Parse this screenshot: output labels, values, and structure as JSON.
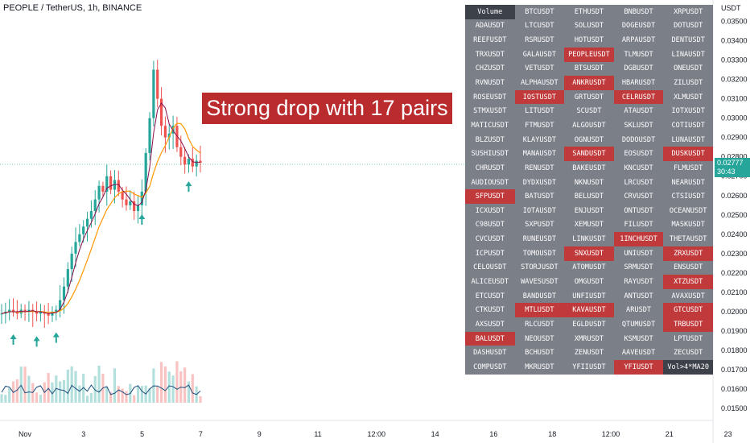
{
  "header": {
    "title": "PEOPLE / TetherUS, 1h, BINANCE"
  },
  "banner": {
    "text": "Strong drop with 17 pairs"
  },
  "price_axis": {
    "currency": "USDT",
    "current_price": "0.02777",
    "countdown": "30:43"
  },
  "colors": {
    "up": "#26a69a",
    "down": "#ef5350",
    "ma_fast": "#880e4f",
    "ma_slow": "#ff9800",
    "volume_ma": "#1e4e7c",
    "highlight": "#c0393b",
    "table_bg": "#7b7f88",
    "header_bg": "#3d414a"
  },
  "chart_data": {
    "type": "line",
    "ylim": [
      0.0148,
      0.0361
    ],
    "y_ticks": [
      "0.01500",
      "0.01600",
      "0.01700",
      "0.01800",
      "0.01900",
      "0.02000",
      "0.02100",
      "0.02200",
      "0.02300",
      "0.02400",
      "0.02500",
      "0.02600",
      "0.02700",
      "0.02800",
      "0.02900",
      "0.03000",
      "0.03100",
      "0.03200",
      "0.03300",
      "0.03400",
      "0.03500"
    ],
    "x_ticks": [
      "Nov",
      "3",
      "5",
      "7",
      "9",
      "11",
      "12:00",
      "14",
      "16",
      "18",
      "12:00",
      "21",
      "23"
    ],
    "series": [
      {
        "values": [
          0.0199,
          0.02,
          0.0201,
          0.02,
          0.0199,
          0.0201,
          0.02,
          0.0201,
          0.02,
          0.0199,
          0.02,
          0.0199,
          0.0198,
          0.02,
          0.0201,
          0.0206,
          0.0213,
          0.0222,
          0.023,
          0.0236,
          0.024,
          0.0244,
          0.0248,
          0.0252,
          0.0258,
          0.0265,
          0.0262,
          0.027,
          0.0263,
          0.0268,
          0.0262,
          0.0258,
          0.0255,
          0.0257,
          0.0252,
          0.0255,
          0.0262,
          0.0282,
          0.03,
          0.0325,
          0.031,
          0.0296,
          0.029,
          0.0292,
          0.0296,
          0.0285,
          0.028,
          0.0276,
          0.0279,
          0.0275,
          0.0278,
          0.0277
        ]
      }
    ],
    "signal_arrows": 5
  },
  "scanner": {
    "rows": [
      [
        "Volume",
        "BTCUSDT",
        "ETHUSDT",
        "BNBUSDT",
        "XRPUSDT"
      ],
      [
        "ADAUSDT",
        "LTCUSDT",
        "SOLUSDT",
        "DOGEUSDT",
        "DOTUSDT"
      ],
      [
        "REEFUSDT",
        "RSRUSDT",
        "HOTUSDT",
        "ARPAUSDT",
        "DENTUSDT"
      ],
      [
        "TRXUSDT",
        "GALAUSDT",
        "PEOPLEUSDT",
        "TLMUSDT",
        "LINAUSDT"
      ],
      [
        "CHZUSDT",
        "VETUSDT",
        "BTSUSDT",
        "DGBUSDT",
        "ONEUSDT"
      ],
      [
        "RVNUSDT",
        "ALPHAUSDT",
        "ANKRUSDT",
        "HBARUSDT",
        "ZILUSDT"
      ],
      [
        "ROSEUSDT",
        "IOSTUSDT",
        "GRTUSDT",
        "CELRUSDT",
        "XLMUSDT"
      ],
      [
        "STMXUSDT",
        "LITUSDT",
        "SCUSDT",
        "ATAUSDT",
        "IOTXUSDT"
      ],
      [
        "MATICUSDT",
        "FTMUSDT",
        "ALGOUSDT",
        "SKLUSDT",
        "COTIUSDT"
      ],
      [
        "BLZUSDT",
        "KLAYUSDT",
        "OGNUSDT",
        "DODOUSDT",
        "LUNAUSDT"
      ],
      [
        "SUSHIUSDT",
        "MANAUSDT",
        "SANDUSDT",
        "EOSUSDT",
        "DUSKUSDT"
      ],
      [
        "CHRUSDT",
        "RENUSDT",
        "BAKEUSDT",
        "KNCUSDT",
        "FLMUSDT"
      ],
      [
        "AUDIOUSDT",
        "DYDXUSDT",
        "NKNUSDT",
        "LRCUSDT",
        "NEARUSDT"
      ],
      [
        "SFPUSDT",
        "BATUSDT",
        "BELUSDT",
        "CRVUSDT",
        "CTSIUSDT"
      ],
      [
        "ICXUSDT",
        "IOTAUSDT",
        "ENJUSDT",
        "ONTUSDT",
        "OCEANUSDT"
      ],
      [
        "C98USDT",
        "SXPUSDT",
        "XEMUSDT",
        "FILUSDT",
        "MASKUSDT"
      ],
      [
        "CVCUSDT",
        "RUNEUSDT",
        "LINKUSDT",
        "1INCHUSDT",
        "THETAUSDT"
      ],
      [
        "ICPUSDT",
        "TOMOUSDT",
        "SNXUSDT",
        "UNIUSDT",
        "ZRXUSDT"
      ],
      [
        "CELOUSDT",
        "STORJUSDT",
        "ATOMUSDT",
        "SRMUSDT",
        "ENSUSDT"
      ],
      [
        "ALICEUSDT",
        "WAVESUSDT",
        "OMGUSDT",
        "RAYUSDT",
        "XTZUSDT"
      ],
      [
        "ETCUSDT",
        "BANDUSDT",
        "UNFIUSDT",
        "ANTUSDT",
        "AVAXUSDT"
      ],
      [
        "CTKUSDT",
        "MTLUSDT",
        "KAVAUSDT",
        "ARUSDT",
        "GTCUSDT"
      ],
      [
        "AXSUSDT",
        "RLCUSDT",
        "EGLDUSDT",
        "QTUMUSDT",
        "TRBUSDT"
      ],
      [
        "BALUSDT",
        "NEOUSDT",
        "XMRUSDT",
        "KSMUSDT",
        "LPTUSDT"
      ],
      [
        "DASHUSDT",
        "BCHUSDT",
        "ZENUSDT",
        "AAVEUSDT",
        "ZECUSDT"
      ],
      [
        "COMPUSDT",
        "MKRUSDT",
        "YFIIUSDT",
        "YFIUSDT",
        "Vol>4*MA20"
      ]
    ],
    "highlighted": [
      "PEOPLEUSDT",
      "ANKRUSDT",
      "IOSTUSDT",
      "CELRUSDT",
      "SANDUSDT",
      "DUSKUSDT",
      "SFPUSDT",
      "1INCHUSDT",
      "SNXUSDT",
      "ZRXUSDT",
      "XTZUSDT",
      "MTLUSDT",
      "KAVAUSDT",
      "GTCUSDT",
      "TRBUSDT",
      "BALUSDT",
      "YFIUSDT"
    ],
    "header_cells": [
      "Volume",
      "Vol>4*MA20"
    ]
  }
}
